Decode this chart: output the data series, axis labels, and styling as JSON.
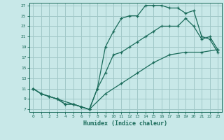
{
  "title": "",
  "xlabel": "Humidex (Indice chaleur)",
  "bg_color": "#c8e8e8",
  "grid_color": "#a0c8c8",
  "line_color": "#1a6b5a",
  "xlim": [
    -0.5,
    23.5
  ],
  "ylim": [
    6.5,
    27.5
  ],
  "xticks": [
    0,
    1,
    2,
    3,
    4,
    5,
    6,
    7,
    8,
    9,
    10,
    11,
    12,
    13,
    14,
    15,
    16,
    17,
    18,
    19,
    20,
    21,
    22,
    23
  ],
  "yticks": [
    7,
    9,
    11,
    13,
    15,
    17,
    19,
    21,
    23,
    25,
    27
  ],
  "curve1_x": [
    0,
    1,
    2,
    3,
    4,
    5,
    6,
    7,
    8,
    9,
    10,
    11,
    12,
    13,
    14,
    15,
    16,
    17,
    18,
    19,
    20,
    21,
    22,
    23
  ],
  "curve1_y": [
    11,
    10,
    9.5,
    9,
    8,
    8,
    7.5,
    7,
    11,
    19,
    22,
    24.5,
    25,
    25,
    27,
    27,
    27,
    26.5,
    26.5,
    25.5,
    26,
    21,
    20.5,
    18
  ],
  "curve2_x": [
    0,
    1,
    2,
    3,
    4,
    5,
    6,
    7,
    8,
    9,
    10,
    11,
    12,
    13,
    14,
    15,
    16,
    17,
    18,
    19,
    20,
    21,
    22,
    23
  ],
  "curve2_y": [
    11,
    10,
    9.5,
    9,
    8,
    8,
    7.5,
    7,
    11,
    14,
    17.5,
    18,
    19,
    20,
    21,
    22,
    23,
    23,
    23,
    24.5,
    23,
    20.5,
    21,
    18.5
  ],
  "curve3_x": [
    0,
    1,
    3,
    5,
    7,
    9,
    11,
    13,
    15,
    17,
    19,
    21,
    23
  ],
  "curve3_y": [
    11,
    10,
    9,
    8,
    7,
    10,
    12,
    14,
    16,
    17.5,
    18,
    18,
    18.5
  ]
}
